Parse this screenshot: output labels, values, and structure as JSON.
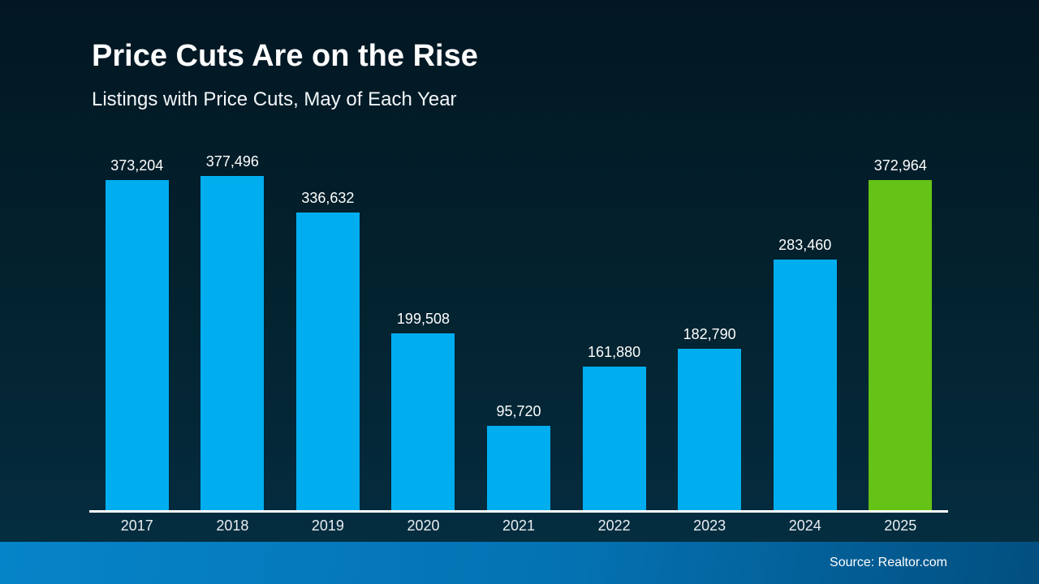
{
  "header": {
    "title": "Price Cuts Are on the Rise",
    "subtitle": "Listings with Price Cuts, May of Each Year"
  },
  "footer": {
    "source": "Source: Realtor.com"
  },
  "colors": {
    "bar_blue": "#00AEEF",
    "bar_green_highlight": "#65C216",
    "axis_line": "#FFFFFF",
    "background_top": "#021723",
    "background_bottom": "#053044",
    "footer_gradient_left": "#0684C9",
    "footer_gradient_right": "#024F80"
  },
  "chart_data": {
    "type": "bar",
    "title": "Price Cuts Are on the Rise",
    "subtitle": "Listings with Price Cuts, May of Each Year",
    "categories": [
      "2017",
      "2018",
      "2019",
      "2020",
      "2021",
      "2022",
      "2023",
      "2024",
      "2025"
    ],
    "values": [
      373204,
      377496,
      336632,
      199508,
      95720,
      161880,
      182790,
      283460,
      372964
    ],
    "labels": [
      "373,204",
      "377,496",
      "336,632",
      "199,508",
      "95,720",
      "161,880",
      "182,790",
      "283,460",
      "372,964"
    ],
    "colors": [
      "#00AEEF",
      "#00AEEF",
      "#00AEEF",
      "#00AEEF",
      "#00AEEF",
      "#00AEEF",
      "#00AEEF",
      "#00AEEF",
      "#65C216"
    ],
    "xlabel": "",
    "ylabel": "",
    "ylim": [
      0,
      420000
    ],
    "grid": false,
    "legend": false,
    "value_labels_position": "above-bars",
    "highlight_category": "2025"
  }
}
